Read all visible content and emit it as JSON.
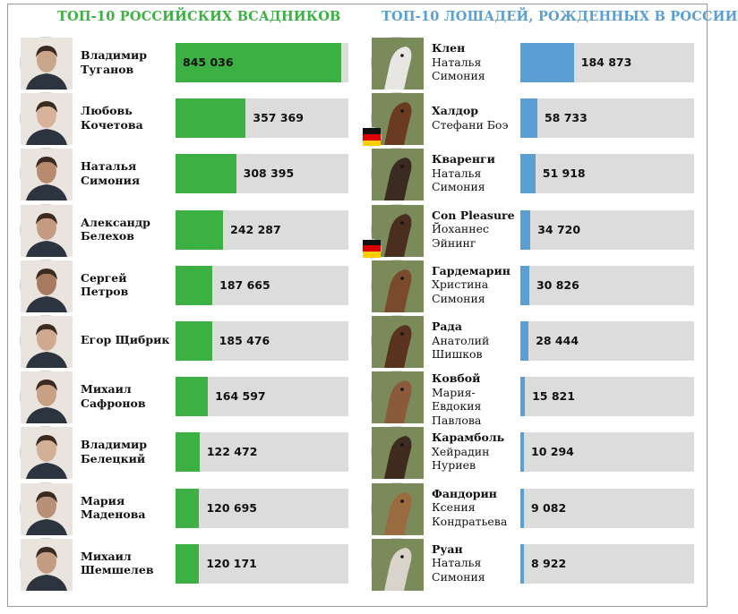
{
  "headings": {
    "riders": "ТОП-10 РОССИЙСКИХ ВСАДНИКОВ",
    "horses": "ТОП-10 ЛОШАДЕЙ, РОЖДЕННЫХ В РОССИИ"
  },
  "colors": {
    "riders": "#3cb043",
    "horses": "#5a9fd4",
    "track": "#dcdcdc"
  },
  "chart_data": [
    {
      "type": "bar",
      "title": "ТОП-10 РОССИЙСКИХ ВСАДНИКОВ",
      "categories": [
        "Владимир Туганов",
        "Любовь Кочетова",
        "Наталья Симония",
        "Александр Белехов",
        "Сергей Петров",
        "Егор Щибрик",
        "Михаил Сафронов",
        "Владимир Белецкий",
        "Мария Маденова",
        "Михаил Шемшелев"
      ],
      "values": [
        845036,
        357369,
        308395,
        242287,
        187665,
        185476,
        164597,
        122472,
        120695,
        120171
      ],
      "ylim": [
        0,
        880000
      ],
      "rows": [
        {
          "line1": "Владимир",
          "line2": "Туганов",
          "value_label": "845 036"
        },
        {
          "line1": "Любовь",
          "line2": "Кочетова",
          "value_label": "357 369"
        },
        {
          "line1": "Наталья",
          "line2": "Симония",
          "value_label": "308 395"
        },
        {
          "line1": "Александр",
          "line2": "Белехов",
          "value_label": "242 287"
        },
        {
          "line1": "Сергей",
          "line2": "Петров",
          "value_label": "187 665"
        },
        {
          "line1": "Егор Щибрик",
          "line2": "",
          "value_label": "185 476"
        },
        {
          "line1": "Михаил",
          "line2": "Сафронов",
          "value_label": "164 597"
        },
        {
          "line1": "Владимир",
          "line2": "Белецкий",
          "value_label": "122 472"
        },
        {
          "line1": "Мария",
          "line2": "Маденова",
          "value_label": "120 695"
        },
        {
          "line1": "Михаил",
          "line2": "Шемшелев",
          "value_label": "120 171"
        }
      ]
    },
    {
      "type": "bar",
      "title": "ТОП-10 ЛОШАДЕЙ, РОЖДЕННЫХ В РОССИИ",
      "categories": [
        "Клен",
        "Халдор",
        "Кваренги",
        "Con Pleasure",
        "Гардемарин",
        "Рада",
        "Ковбой",
        "Карамболь",
        "Фандорин",
        "Руан"
      ],
      "values": [
        184873,
        58733,
        51918,
        34720,
        30826,
        28444,
        15821,
        10294,
        9082,
        8922
      ],
      "ylim": [
        0,
        600000
      ],
      "rows": [
        {
          "horse": "Клен",
          "riders": [
            "Наталья",
            "Симония"
          ],
          "value_label": "184 873",
          "flag": ""
        },
        {
          "horse": "Халдор",
          "riders": [
            "Стефани Боэ"
          ],
          "value_label": "58 733",
          "flag": "Germany"
        },
        {
          "horse": "Кваренги",
          "riders": [
            "Наталья",
            "Симония"
          ],
          "value_label": "51 918",
          "flag": ""
        },
        {
          "horse": "Con Pleasure",
          "riders": [
            "Йоханнес",
            "Эйнинг"
          ],
          "value_label": "34 720",
          "flag": "Germany"
        },
        {
          "horse": "Гардемарин",
          "riders": [
            "Христина",
            "Симония"
          ],
          "value_label": "30 826",
          "flag": ""
        },
        {
          "horse": "Рада",
          "riders": [
            "Анатолий",
            "Шишков"
          ],
          "value_label": "28 444",
          "flag": ""
        },
        {
          "horse": "Ковбой",
          "riders": [
            "Мария-",
            "Евдокия",
            "Павлова"
          ],
          "value_label": "15 821",
          "flag": ""
        },
        {
          "horse": "Карамболь",
          "riders": [
            "Хейрадин",
            "Нуриев"
          ],
          "value_label": "10 294",
          "flag": ""
        },
        {
          "horse": "Фандорин",
          "riders": [
            "Ксения",
            "Кондратьева"
          ],
          "value_label": "9 082",
          "flag": ""
        },
        {
          "horse": "Руан",
          "riders": [
            "Наталья",
            "Симония"
          ],
          "value_label": "8 922",
          "flag": ""
        }
      ]
    }
  ]
}
